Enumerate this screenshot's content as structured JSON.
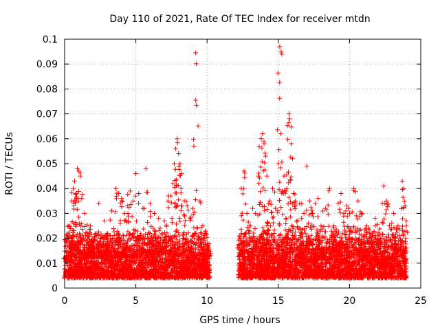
{
  "chart_data": {
    "type": "scatter",
    "title": "Day 110 of 2021, Rate Of TEC Index for receiver mtdn",
    "xlabel": "GPS time / hours",
    "ylabel": "ROTI / TECUs",
    "xlim": [
      0,
      25
    ],
    "ylim": [
      0,
      0.1
    ],
    "x_ticks": [
      "0",
      "5",
      "10",
      "15",
      "20",
      "25"
    ],
    "y_ticks": [
      "0",
      "0.01",
      "0.02",
      "0.03",
      "0.04",
      "0.05",
      "0.06",
      "0.07",
      "0.08",
      "0.09",
      "0.1"
    ],
    "grid": true,
    "marker": "+",
    "color": "#ff0000",
    "series": [
      {
        "points": [
          [
            0.1,
            0.012
          ],
          [
            0.3,
            0.025
          ],
          [
            0.5,
            0.035
          ],
          [
            0.6,
            0.04
          ],
          [
            0.7,
            0.043
          ],
          [
            0.8,
            0.038
          ],
          [
            0.9,
            0.048
          ],
          [
            1.0,
            0.047
          ],
          [
            1.1,
            0.045
          ],
          [
            1.2,
            0.036
          ],
          [
            1.4,
            0.03
          ],
          [
            1.6,
            0.022
          ],
          [
            1.8,
            0.025
          ],
          [
            2.0,
            0.018
          ],
          [
            2.2,
            0.022
          ],
          [
            2.4,
            0.034
          ],
          [
            2.6,
            0.02
          ],
          [
            2.8,
            0.027
          ],
          [
            3.0,
            0.022
          ],
          [
            3.3,
            0.031
          ],
          [
            3.6,
            0.04
          ],
          [
            3.8,
            0.038
          ],
          [
            4.0,
            0.036
          ],
          [
            4.2,
            0.03
          ],
          [
            4.4,
            0.033
          ],
          [
            4.6,
            0.039
          ],
          [
            4.8,
            0.035
          ],
          [
            5.0,
            0.046
          ],
          [
            5.2,
            0.038
          ],
          [
            5.5,
            0.032
          ],
          [
            5.7,
            0.048
          ],
          [
            6.0,
            0.034
          ],
          [
            6.3,
            0.03
          ],
          [
            6.6,
            0.028
          ],
          [
            7.0,
            0.027
          ],
          [
            7.3,
            0.037
          ],
          [
            7.6,
            0.042
          ],
          [
            7.7,
            0.05
          ],
          [
            7.8,
            0.056
          ],
          [
            7.9,
            0.06
          ],
          [
            8.0,
            0.054
          ],
          [
            8.1,
            0.05
          ],
          [
            8.2,
            0.046
          ],
          [
            8.4,
            0.035
          ],
          [
            8.6,
            0.033
          ],
          [
            8.8,
            0.028
          ],
          [
            9.0,
            0.032
          ],
          [
            9.2,
            0.0945
          ],
          [
            9.2,
            0.0755
          ],
          [
            9.5,
            0.035
          ],
          [
            9.7,
            0.025
          ],
          [
            9.9,
            0.022
          ],
          [
            10.1,
            0.015
          ],
          [
            12.3,
            0.02
          ],
          [
            12.4,
            0.04
          ],
          [
            12.6,
            0.047
          ],
          [
            12.8,
            0.03
          ],
          [
            13.0,
            0.025
          ],
          [
            13.2,
            0.032
          ],
          [
            13.4,
            0.03
          ],
          [
            13.6,
            0.045
          ],
          [
            13.8,
            0.06
          ],
          [
            13.9,
            0.062
          ],
          [
            14.0,
            0.058
          ],
          [
            14.1,
            0.053
          ],
          [
            14.2,
            0.045
          ],
          [
            14.4,
            0.035
          ],
          [
            14.6,
            0.04
          ],
          [
            14.8,
            0.032
          ],
          [
            15.0,
            0.05
          ],
          [
            15.1,
            0.097
          ],
          [
            15.2,
            0.095
          ],
          [
            15.25,
            0.094
          ],
          [
            15.4,
            0.045
          ],
          [
            15.6,
            0.04
          ],
          [
            15.75,
            0.07
          ],
          [
            15.8,
            0.068
          ],
          [
            15.9,
            0.058
          ],
          [
            16.0,
            0.052
          ],
          [
            16.2,
            0.035
          ],
          [
            16.5,
            0.034
          ],
          [
            16.8,
            0.03
          ],
          [
            17.0,
            0.049
          ],
          [
            17.2,
            0.035
          ],
          [
            17.4,
            0.03
          ],
          [
            17.6,
            0.034
          ],
          [
            17.8,
            0.036
          ],
          [
            18.0,
            0.025
          ],
          [
            18.3,
            0.032
          ],
          [
            18.6,
            0.04
          ],
          [
            18.9,
            0.025
          ],
          [
            19.2,
            0.034
          ],
          [
            19.4,
            0.038
          ],
          [
            19.6,
            0.03
          ],
          [
            19.8,
            0.033
          ],
          [
            20.0,
            0.03
          ],
          [
            20.3,
            0.04
          ],
          [
            20.6,
            0.035
          ],
          [
            20.9,
            0.03
          ],
          [
            21.2,
            0.025
          ],
          [
            21.5,
            0.022
          ],
          [
            21.8,
            0.028
          ],
          [
            22.1,
            0.02
          ],
          [
            22.4,
            0.041
          ],
          [
            22.6,
            0.035
          ],
          [
            22.8,
            0.025
          ],
          [
            23.1,
            0.03
          ],
          [
            23.4,
            0.025
          ],
          [
            23.7,
            0.043
          ],
          [
            23.8,
            0.04
          ],
          [
            23.9,
            0.033
          ]
        ],
        "segments": [
          {
            "x": [
              0.0,
              10.2
            ],
            "y": [
              0.004,
              0.024
            ]
          },
          {
            "x": [
              12.2,
              24.0
            ],
            "y": [
              0.004,
              0.025
            ]
          }
        ]
      }
    ]
  }
}
